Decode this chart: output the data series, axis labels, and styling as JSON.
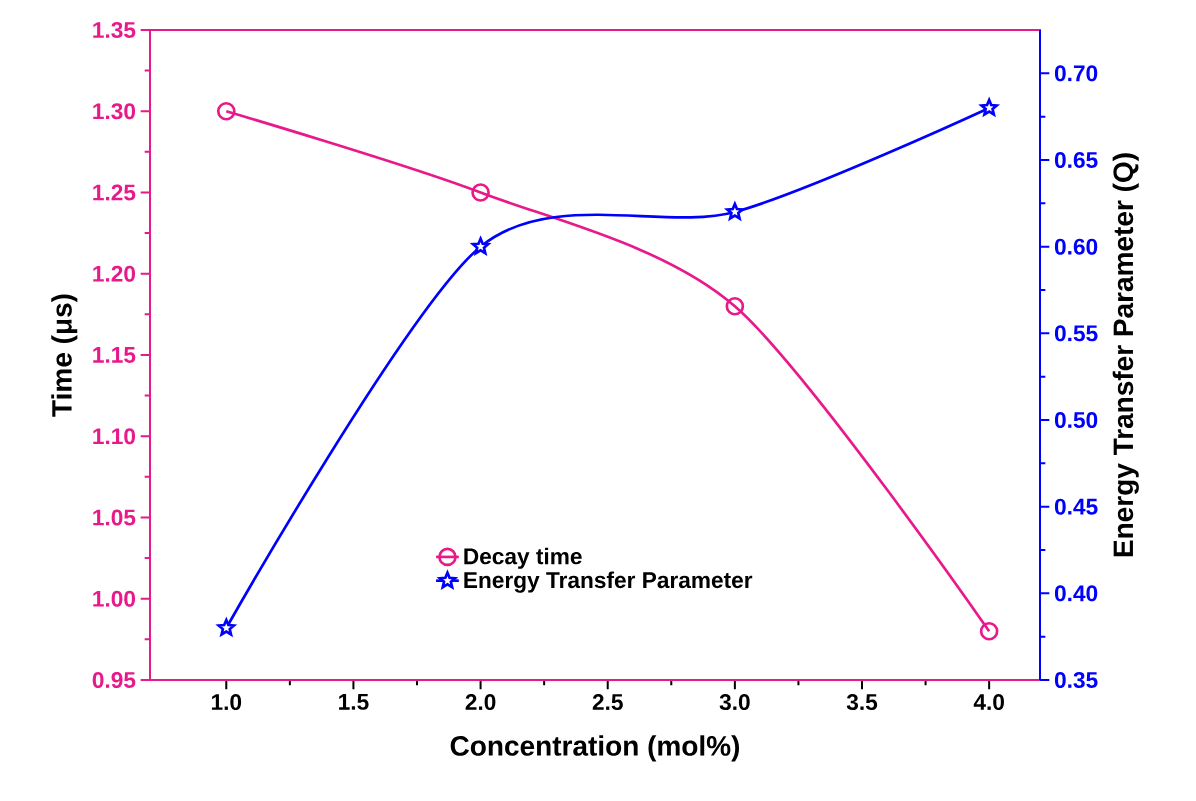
{
  "chart_data": {
    "type": "line",
    "xlabel": "Concentration (mol%)",
    "ylabel": "Time (μs)",
    "y2label": "Energy Transfer Parameter (Q)",
    "x": [
      1,
      2,
      3,
      4
    ],
    "xlim": [
      0.7,
      4.2
    ],
    "xticks": [
      {
        "value": 1,
        "label": "1.0"
      },
      {
        "value": 1.5,
        "label": "1.5"
      },
      {
        "value": 2,
        "label": "2.0"
      },
      {
        "value": 2.5,
        "label": "2.5"
      },
      {
        "value": 3,
        "label": "3.0"
      },
      {
        "value": 3.5,
        "label": "3.5"
      },
      {
        "value": 4,
        "label": "4.0"
      }
    ],
    "ylim": [
      0.95,
      1.35
    ],
    "yticks": [
      {
        "value": 0.95,
        "label": "0.95"
      },
      {
        "value": 1.0,
        "label": "1.00"
      },
      {
        "value": 1.05,
        "label": "1.05"
      },
      {
        "value": 1.1,
        "label": "1.10"
      },
      {
        "value": 1.15,
        "label": "1.15"
      },
      {
        "value": 1.2,
        "label": "1.20"
      },
      {
        "value": 1.25,
        "label": "1.25"
      },
      {
        "value": 1.3,
        "label": "1.30"
      },
      {
        "value": 1.35,
        "label": "1.35"
      }
    ],
    "y2lim": [
      0.35,
      0.725
    ],
    "y2ticks": [
      {
        "value": 0.35,
        "label": "0.35"
      },
      {
        "value": 0.4,
        "label": "0.40"
      },
      {
        "value": 0.45,
        "label": "0.45"
      },
      {
        "value": 0.5,
        "label": "0.50"
      },
      {
        "value": 0.55,
        "label": "0.55"
      },
      {
        "value": 0.6,
        "label": "0.60"
      },
      {
        "value": 0.65,
        "label": "0.65"
      },
      {
        "value": 0.7,
        "label": "0.70"
      }
    ],
    "series": [
      {
        "name": "Decay time",
        "color": "#e8198b",
        "marker": "circle",
        "values": [
          1.3,
          1.25,
          1.18,
          0.98
        ]
      },
      {
        "name": "Energy Transfer Parameter",
        "color": "#0000ff",
        "marker": "star",
        "axis": "y2",
        "values": [
          0.38,
          0.6,
          0.62,
          0.68
        ]
      }
    ],
    "legend": "bottom"
  }
}
